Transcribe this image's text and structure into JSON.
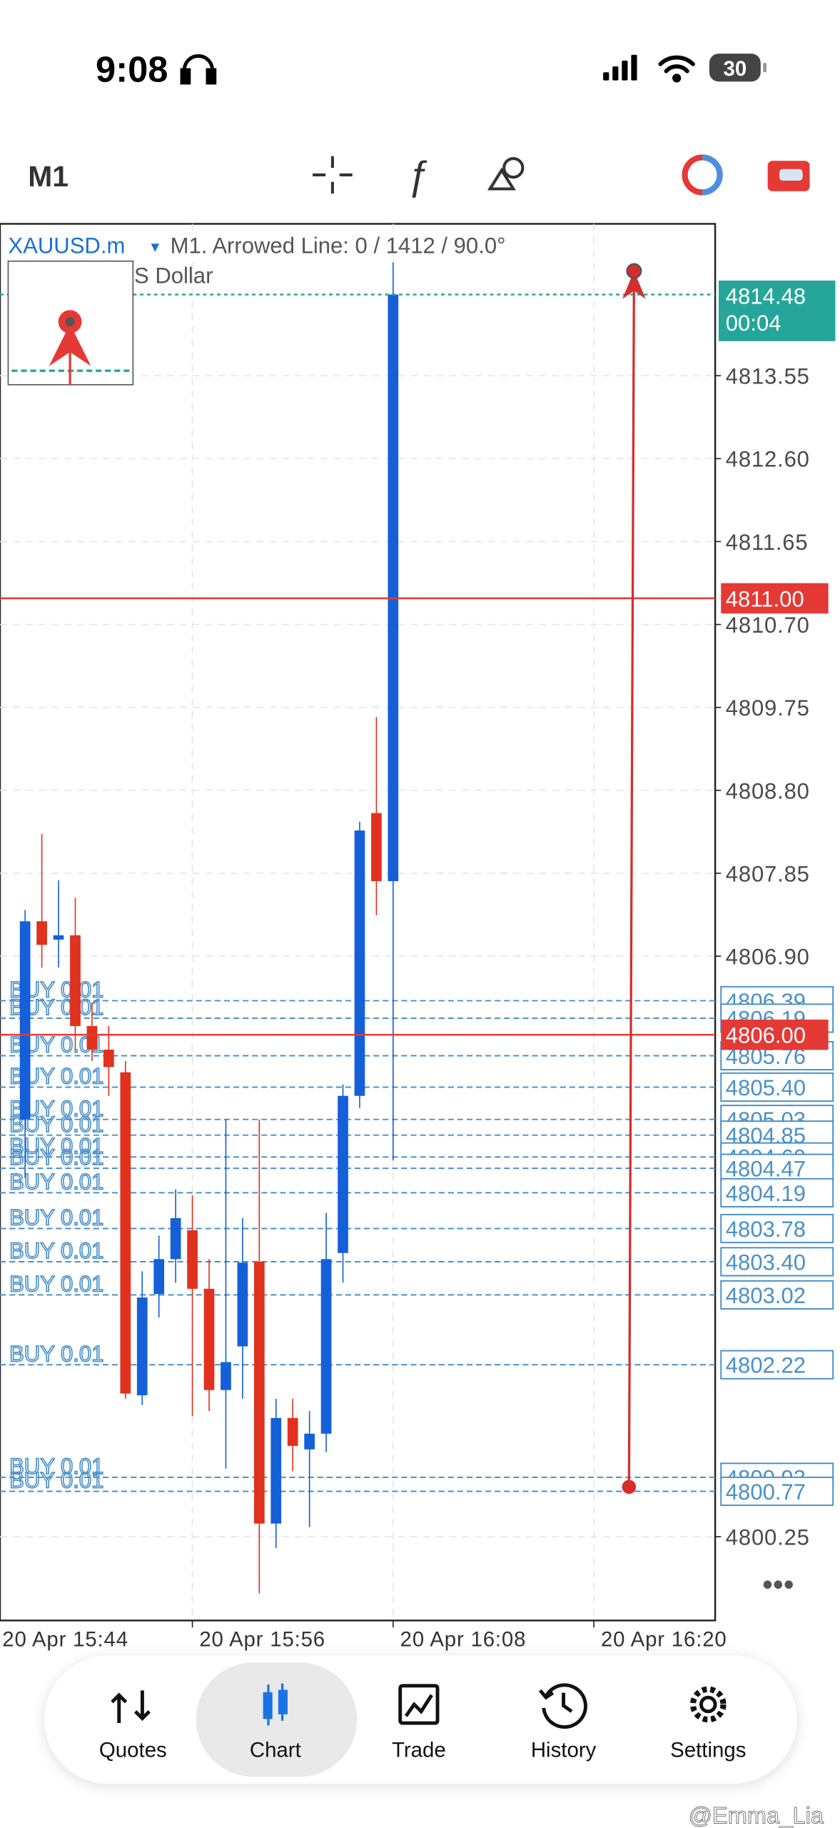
{
  "status_bar": {
    "time": "9:08",
    "battery": "30"
  },
  "toolbar": {
    "timeframe": "M1"
  },
  "chart_data": {
    "type": "candlestick",
    "symbol": "XAUUSD.m",
    "subtitle": "M1. Arrowed Line: 0 / 1412 / 90.0°",
    "description": "S Dollar",
    "categories": [
      null,
      null,
      null,
      null,
      null,
      null,
      null,
      null,
      null,
      null,
      null,
      null,
      null,
      null,
      null,
      null,
      null,
      null,
      null,
      null,
      null,
      null,
      null
    ],
    "open": [
      4805.03,
      4807.3,
      4807.09,
      4807.14,
      4806.1,
      4805.83,
      4805.57,
      4801.87,
      4803.03,
      4803.43,
      4803.76,
      4803.09,
      4801.93,
      4802.43,
      4803.4,
      4800.4,
      4801.61,
      4801.25,
      4801.43,
      4803.5,
      4805.3,
      4808.54,
      4807.76
    ],
    "high": [
      4807.43,
      4808.3,
      4807.77,
      4807.57,
      4806.37,
      4806.1,
      4805.7,
      4803.29,
      4803.7,
      4804.23,
      4804.16,
      4803.43,
      4805.03,
      4803.9,
      4805.03,
      4801.83,
      4801.83,
      4801.69,
      4803.96,
      4805.43,
      4808.44,
      4809.64,
      4814.85
    ],
    "low": [
      4804.36,
      4806.77,
      4806.77,
      4805.83,
      4805.7,
      4805.3,
      4801.83,
      4801.76,
      4802.76,
      4803.16,
      4801.63,
      4801.69,
      4801.03,
      4801.83,
      4799.6,
      4800.12,
      4801.0,
      4800.36,
      4801.22,
      4803.16,
      4805.16,
      4807.37,
      4804.56
    ],
    "close": [
      4807.3,
      4807.03,
      4807.14,
      4806.1,
      4805.83,
      4805.63,
      4801.89,
      4802.99,
      4803.43,
      4803.9,
      4803.09,
      4801.93,
      4802.25,
      4803.39,
      4800.4,
      4801.61,
      4801.29,
      4801.43,
      4803.43,
      4805.3,
      4808.34,
      4807.76,
      4814.48
    ],
    "up_color": "#1560d8",
    "down_color": "#e0321e",
    "ylim": [
      4799.29,
      4815.29
    ],
    "yticks": [
      {
        "value": 4800.25,
        "label": "4800.25"
      },
      {
        "value": 4806.9,
        "label": "4806.90"
      },
      {
        "value": 4807.85,
        "label": "4807.85"
      },
      {
        "value": 4808.8,
        "label": "4808.80"
      },
      {
        "value": 4809.75,
        "label": "4809.75"
      },
      {
        "value": 4810.7,
        "label": "4810.70"
      },
      {
        "value": 4811.65,
        "label": "4811.65"
      },
      {
        "value": 4812.6,
        "label": "4812.60"
      },
      {
        "value": 4813.55,
        "label": "4813.55"
      }
    ],
    "xlim": [
      -1.5,
      41.25
    ],
    "xticks": [
      {
        "value": -2,
        "label": "20 Apr 15:44"
      },
      {
        "value": 10,
        "label": "20 Apr 15:56"
      },
      {
        "value": 22,
        "label": "20 Apr 16:08"
      },
      {
        "value": 34,
        "label": "20 Apr 16:20"
      }
    ],
    "grid": true,
    "bid": {
      "price": {
        "value": 4814.48,
        "label": "4814.48"
      },
      "timer": "00:04",
      "color": "#26a69a"
    },
    "price_lines": [
      {
        "price": {
          "value": 4811,
          "label": "4811.00"
        },
        "color": "#e53935"
      },
      {
        "price": {
          "value": 4806,
          "label": "4806.00"
        },
        "color": "#e53935"
      }
    ],
    "order_color": "#4a90c8",
    "orders": [
      {
        "label": "BUY 0.01",
        "price": {
          "value": 4806.39,
          "label": "4806.39"
        }
      },
      {
        "label": "BUY 0.01",
        "price": {
          "value": 4806.19,
          "label": "4806.19"
        }
      },
      {
        "label": "BUY 0.01",
        "price": {
          "value": 4805.76,
          "label": "4805.76"
        }
      },
      {
        "label": "BUY 0.01",
        "price": {
          "value": 4805.4,
          "label": "4805.40"
        }
      },
      {
        "label": "BUY 0.01",
        "price": {
          "value": 4805.03,
          "label": "4805.03"
        }
      },
      {
        "label": "BUY 0.01",
        "price": {
          "value": 4804.85,
          "label": "4804.85"
        }
      },
      {
        "label": "BUY 0.01",
        "price": {
          "value": 4804.6,
          "label": "4804.60"
        }
      },
      {
        "label": "BUY 0.01",
        "price": {
          "value": 4804.47,
          "label": "4804.47"
        }
      },
      {
        "label": "BUY 0.01",
        "price": {
          "value": 4804.19,
          "label": "4804.19"
        }
      },
      {
        "label": "BUY 0.01",
        "price": {
          "value": 4803.78,
          "label": "4803.78"
        }
      },
      {
        "label": "BUY 0.01",
        "price": {
          "value": 4803.4,
          "label": "4803.40"
        }
      },
      {
        "label": "BUY 0.01",
        "price": {
          "value": 4803.02,
          "label": "4803.02"
        }
      },
      {
        "label": "BUY 0.01",
        "price": {
          "value": 4802.22,
          "label": "4802.22"
        }
      },
      {
        "label": "BUY 0.01",
        "price": {
          "value": 4800.93,
          "label": "4800.93"
        }
      },
      {
        "label": "BUY 0.01",
        "price": {
          "value": 4800.77,
          "label": "4800.77"
        }
      }
    ],
    "arrowed_line": {
      "x": [
        36.1,
        36.4
      ],
      "y": [
        4800.82,
        4814.75
      ],
      "color": "#d32f2f"
    }
  },
  "navigation": {
    "items": [
      "Quotes",
      "Chart",
      "Trade",
      "History",
      "Settings"
    ],
    "active": "Chart"
  },
  "watermark": "@Emma_Lia"
}
